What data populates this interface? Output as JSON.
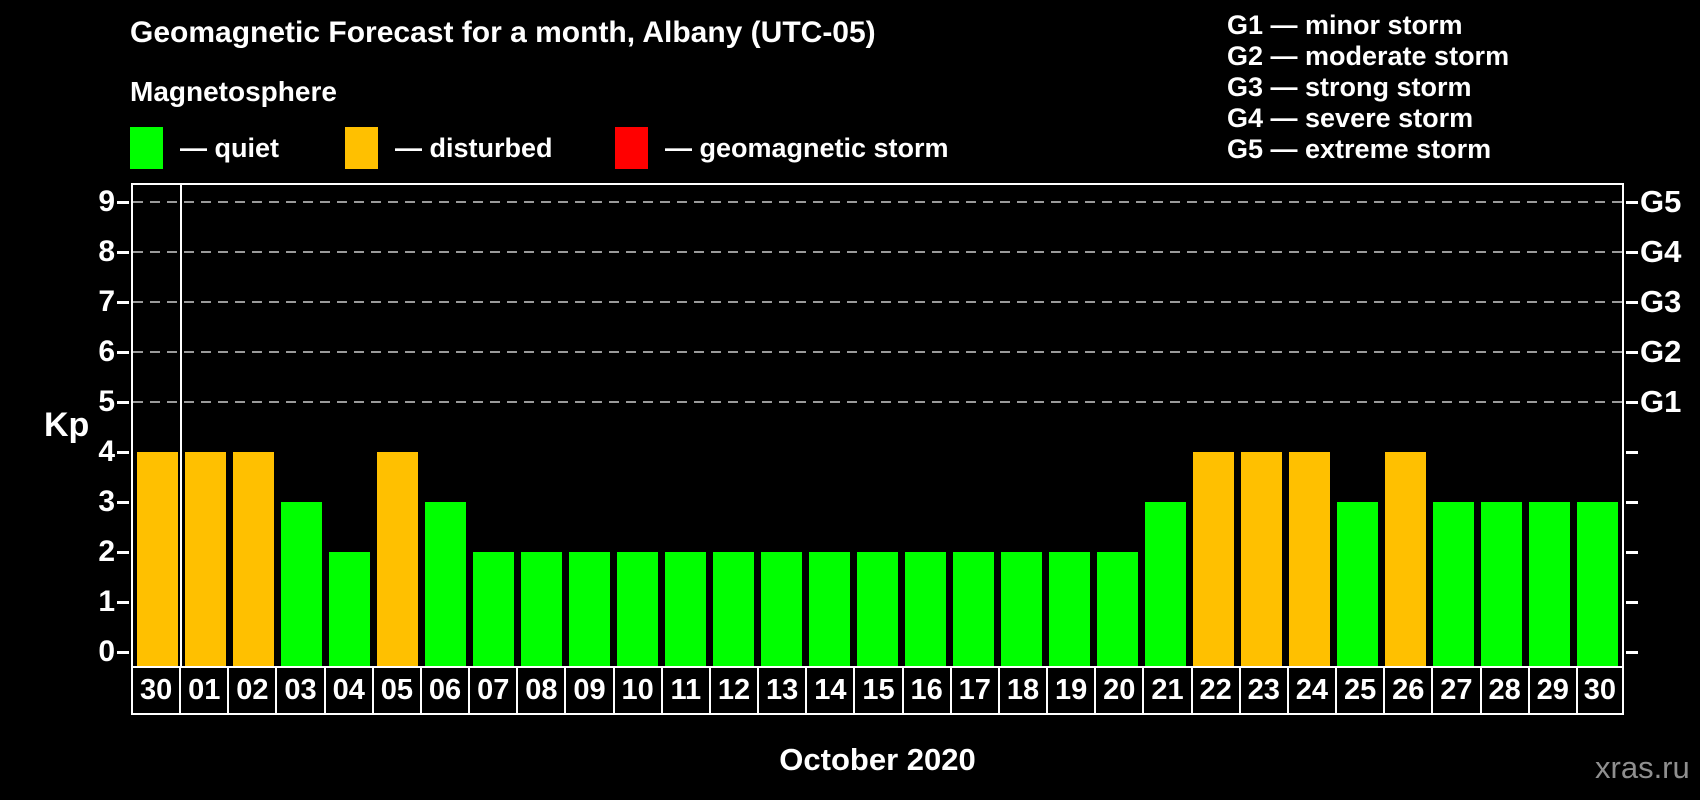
{
  "header": {
    "title": "Geomagnetic Forecast for a month, Albany (UTC-05)",
    "subtitle": "Magnetosphere"
  },
  "legend": {
    "items": [
      {
        "name": "quiet",
        "label": "— quiet",
        "color": "#00ff00"
      },
      {
        "name": "disturbed",
        "label": "— disturbed",
        "color": "#ffc000"
      },
      {
        "name": "storm",
        "label": "— geomagnetic storm",
        "color": "#ff0000"
      }
    ]
  },
  "storm_scale": {
    "items": [
      {
        "label": "G1 — minor storm"
      },
      {
        "label": "G2 — moderate storm"
      },
      {
        "label": "G3 — strong storm"
      },
      {
        "label": "G4 — severe storm"
      },
      {
        "label": "G5 — extreme storm"
      }
    ]
  },
  "footer": {
    "watermark": "xras.ru"
  },
  "chart_data": {
    "type": "bar",
    "title": "Geomagnetic Forecast for a month, Albany (UTC-05)",
    "xlabel": "October 2020",
    "ylabel": "Kp",
    "ylim": [
      0,
      9
    ],
    "yticks": [
      0,
      1,
      2,
      3,
      4,
      5,
      6,
      7,
      8,
      9
    ],
    "categories": [
      "30",
      "01",
      "02",
      "03",
      "04",
      "05",
      "06",
      "07",
      "08",
      "09",
      "10",
      "11",
      "12",
      "13",
      "14",
      "15",
      "16",
      "17",
      "18",
      "19",
      "20",
      "21",
      "22",
      "23",
      "24",
      "25",
      "26",
      "27",
      "28",
      "29",
      "30"
    ],
    "values": [
      4,
      4,
      4,
      3,
      2,
      4,
      3,
      2,
      2,
      2,
      2,
      2,
      2,
      2,
      2,
      2,
      2,
      2,
      2,
      2,
      2,
      3,
      4,
      4,
      4,
      3,
      4,
      3,
      3,
      3,
      3
    ],
    "color_rule": {
      "quiet_max_kp": 3,
      "disturbed_max_kp": 4
    },
    "gridlines_kp": [
      5,
      6,
      7,
      8,
      9
    ],
    "right_axis": {
      "labels": [
        "G1",
        "G2",
        "G3",
        "G4",
        "G5"
      ],
      "kp_levels": [
        5,
        6,
        7,
        8,
        9
      ]
    },
    "month_separator_index": 1,
    "grid": "dashed horizontal lines at G-storm Kp levels",
    "legend_position": "top-left"
  }
}
